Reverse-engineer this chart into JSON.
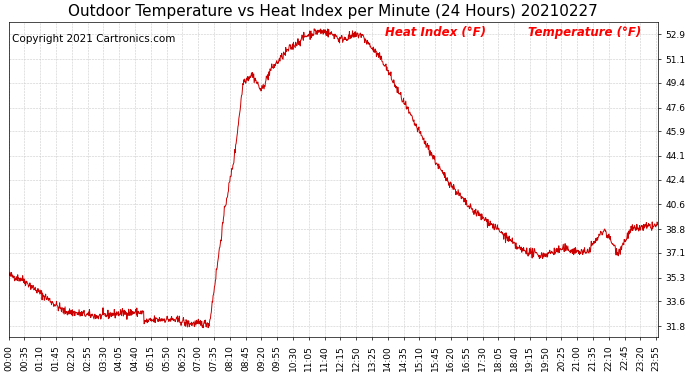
{
  "title": "Outdoor Temperature vs Heat Index per Minute (24 Hours) 20210227",
  "copyright_text": "Copyright 2021 Cartronics.com",
  "legend_label1": "Heat Index (°F)",
  "legend_label2": "Temperature (°F)",
  "legend_color": "#ff0000",
  "line_color": "#cc0000",
  "background_color": "#ffffff",
  "grid_color": "#cccccc",
  "yticks": [
    31.8,
    33.6,
    35.3,
    37.1,
    38.8,
    40.6,
    42.4,
    44.1,
    45.9,
    47.6,
    49.4,
    51.1,
    52.9
  ],
  "ymin": 31.0,
  "ymax": 53.8,
  "title_fontsize": 11,
  "copyright_fontsize": 7.5,
  "tick_fontsize": 6.5,
  "legend_fontsize": 8.5
}
